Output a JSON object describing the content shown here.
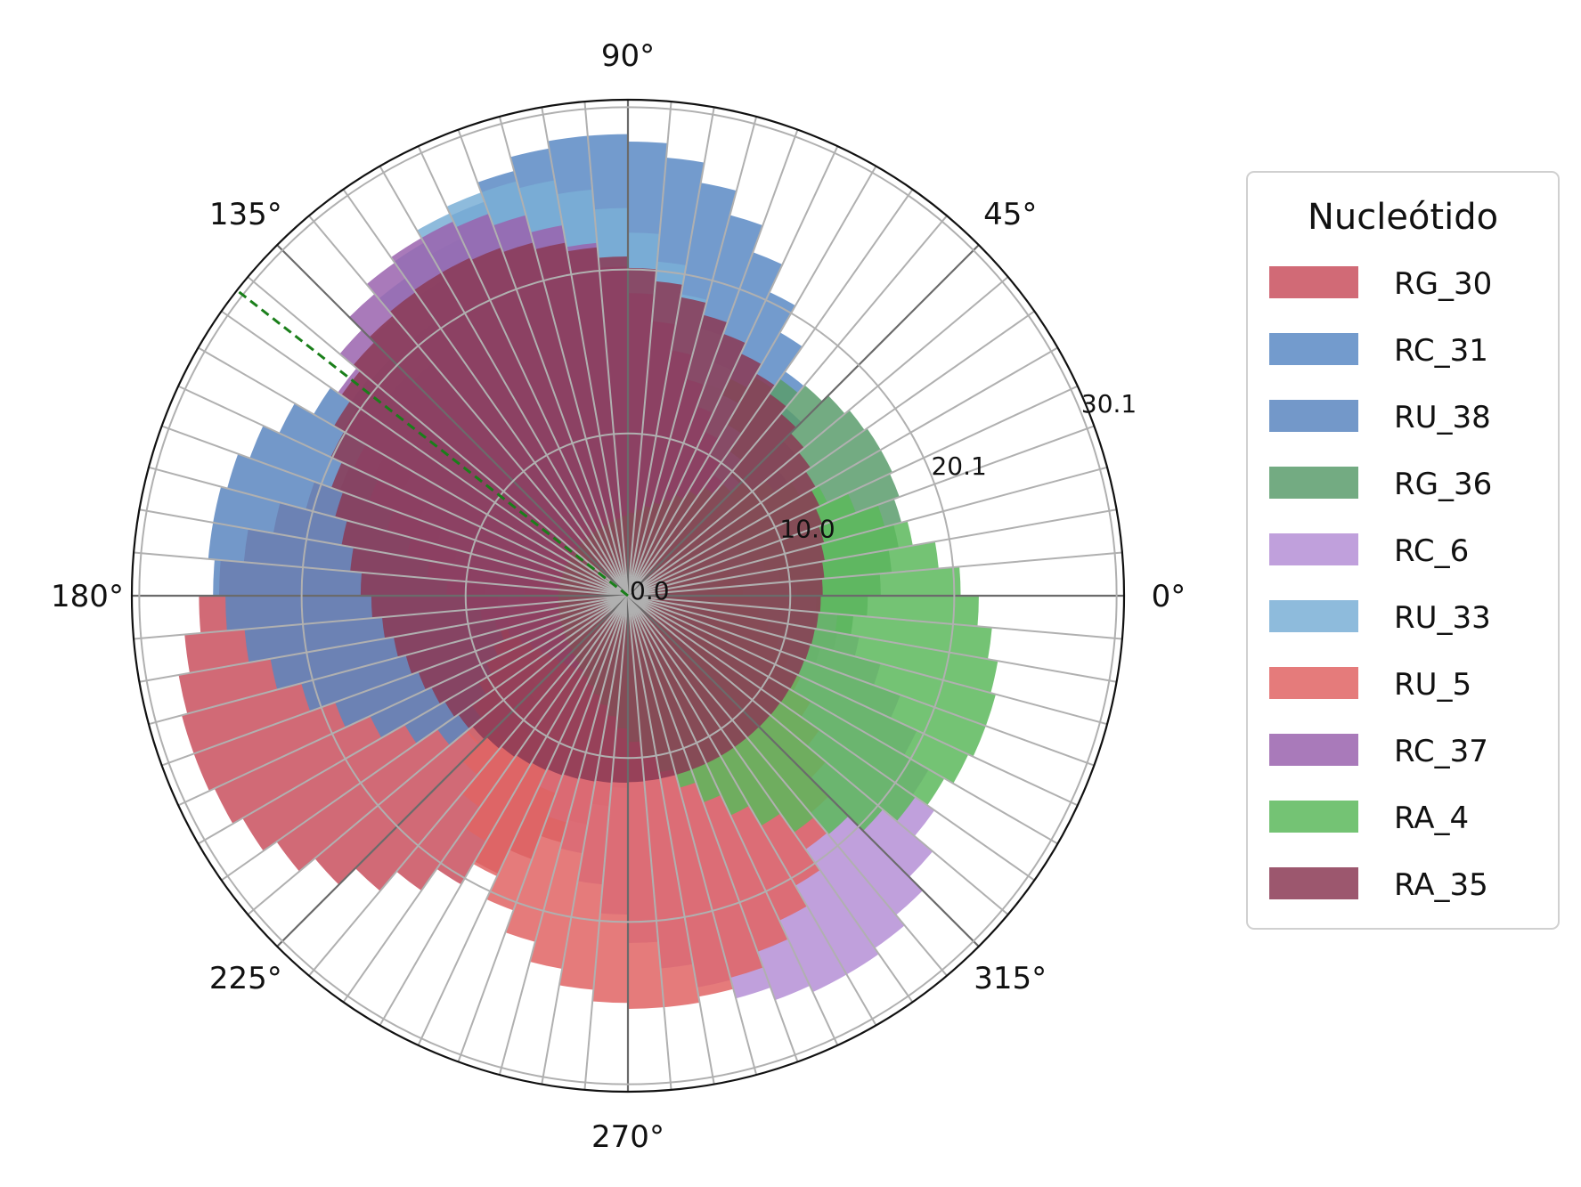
{
  "chart_data": {
    "type": "polar-bar",
    "radial_ticks": [
      "0.0",
      "10.0",
      "20.1",
      "30.1"
    ],
    "radial_tick_values": [
      0,
      10.0,
      20.1,
      30.1
    ],
    "rmax": 30.1,
    "angle_ticks": [
      "0°",
      "45°",
      "90°",
      "135°",
      "180°",
      "225°",
      "270°",
      "315°"
    ],
    "angle_tick_values": [
      0,
      45,
      90,
      135,
      180,
      225,
      270,
      315
    ],
    "bin_width_deg": 5,
    "grid": true,
    "reference_line": {
      "angle_deg": 142,
      "color": "#1a7f1a",
      "style": "dashed"
    },
    "legend": {
      "title": "Nucleótido",
      "placement": "right"
    },
    "series": [
      {
        "name": "RG_30",
        "color": "#c9505e",
        "center_deg": 200,
        "peak": 28.5,
        "base": 5,
        "spread": 2.0
      },
      {
        "name": "RC_31",
        "color": "#5a8ac4",
        "center_deg": 95,
        "peak": 28.5,
        "base": 5,
        "spread": 2.6
      },
      {
        "name": "RU_38",
        "color": "#5b86c0",
        "center_deg": 170,
        "peak": 26.0,
        "base": 5,
        "spread": 2.5
      },
      {
        "name": "RG_36",
        "color": "#5a9c6c",
        "center_deg": 30,
        "peak": 18.0,
        "base": 6,
        "spread": 2.0
      },
      {
        "name": "RC_6",
        "color": "#b58fd6",
        "center_deg": 300,
        "peak": 27.0,
        "base": 5,
        "spread": 2.6
      },
      {
        "name": "RU_33",
        "color": "#7aafd6",
        "center_deg": 110,
        "peak": 26.5,
        "base": 5,
        "spread": 2.8
      },
      {
        "name": "RU_5",
        "color": "#e06464",
        "center_deg": 275,
        "peak": 25.5,
        "base": 5,
        "spread": 2.4
      },
      {
        "name": "RC_37",
        "color": "#9a63ae",
        "center_deg": 120,
        "peak": 25.5,
        "base": 5,
        "spread": 2.6
      },
      {
        "name": "RA_4",
        "color": "#5cb85c",
        "center_deg": 340,
        "peak": 23.5,
        "base": 4,
        "spread": 2.2
      },
      {
        "name": "RA_35",
        "color": "#8b3a55",
        "center_deg": 120,
        "peak": 23.0,
        "base": 11,
        "spread": 1.7
      }
    ]
  }
}
